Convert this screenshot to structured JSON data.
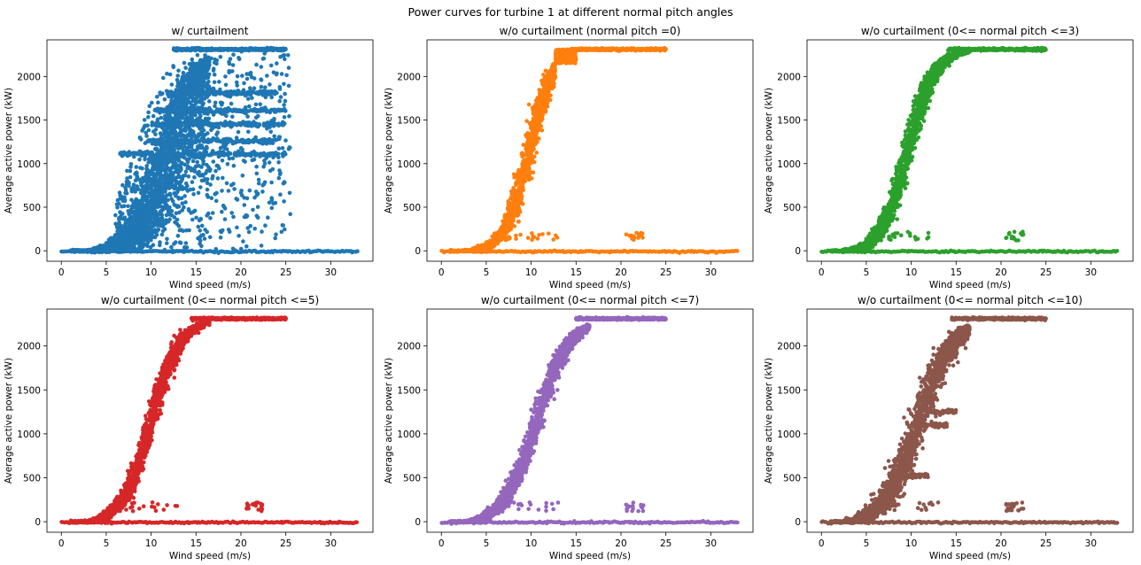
{
  "figure": {
    "title": "Power curves for turbine 1 at different normal pitch angles"
  },
  "chart_data": [
    {
      "type": "scatter",
      "title": "w/ curtailment",
      "xlabel": "Wind speed (m/s)",
      "ylabel": "Average active power (kW)",
      "xlim": [
        -1.6,
        34.7
      ],
      "ylim": [
        -120,
        2420
      ],
      "xticks": [
        0,
        5,
        10,
        15,
        20,
        25,
        30
      ],
      "yticks": [
        0,
        500,
        1000,
        1500,
        2000
      ],
      "grid": false,
      "series": [
        {
          "color": "#1f77b4",
          "mode": "curtailed",
          "curve": {
            "x0": 10.5,
            "k": 0.55,
            "rated": 2310,
            "cutin": 3
          },
          "rated_x_range": [
            12.5,
            25
          ],
          "zero_line_x_range": [
            0,
            33
          ],
          "horizontal_bands": [
            {
              "y": 1110,
              "x_range": [
                6.5,
                25
              ]
            },
            {
              "y": 1610,
              "x_range": [
                10.5,
                25
              ]
            },
            {
              "y": 1260,
              "x_range": [
                9.5,
                24
              ]
            },
            {
              "y": 1810,
              "x_range": [
                11,
                24
              ]
            },
            {
              "y": 1450,
              "x_range": [
                10,
                25
              ]
            }
          ]
        }
      ]
    },
    {
      "type": "scatter",
      "title": "w/o curtailment (normal pitch =0)",
      "xlabel": "Wind speed (m/s)",
      "ylabel": "Average active power (kW)",
      "xlim": [
        -1.6,
        34.7
      ],
      "ylim": [
        -120,
        2420
      ],
      "xticks": [
        0,
        5,
        10,
        15,
        20,
        25,
        30
      ],
      "yticks": [
        0,
        500,
        1000,
        1500,
        2000
      ],
      "grid": false,
      "series": [
        {
          "color": "#ff7f0e",
          "mode": "tight",
          "curve": {
            "x0": 9.8,
            "k": 0.75,
            "rated": 2310,
            "cutin": 3
          },
          "max_x_curve": 12.7,
          "jump": {
            "x_range": [
              12.7,
              15
            ],
            "y_range": [
              2150,
              2310
            ]
          },
          "rated_x_range": [
            14.5,
            25
          ],
          "zero_line_x_range": [
            0,
            33
          ],
          "low_cluster": {
            "x_range": [
              7,
              13
            ],
            "y_range": [
              120,
              210
            ]
          },
          "low_cluster2": {
            "x_range": [
              20.5,
              22.5
            ],
            "y_range": [
              120,
              210
            ]
          }
        }
      ]
    },
    {
      "type": "scatter",
      "title": "w/o curtailment (0<= normal pitch <=3)",
      "xlabel": "Wind speed (m/s)",
      "ylabel": "Average active power (kW)",
      "xlim": [
        -1.6,
        34.7
      ],
      "ylim": [
        -120,
        2420
      ],
      "xticks": [
        0,
        5,
        10,
        15,
        20,
        25,
        30
      ],
      "yticks": [
        0,
        500,
        1000,
        1500,
        2000
      ],
      "grid": false,
      "series": [
        {
          "color": "#2ca02c",
          "mode": "tight",
          "curve": {
            "x0": 9.6,
            "k": 0.68,
            "rated": 2310,
            "cutin": 3
          },
          "rated_x_range": [
            14,
            25
          ],
          "zero_line_x_range": [
            0,
            33
          ],
          "low_cluster": {
            "x_range": [
              7,
              12
            ],
            "y_range": [
              120,
              220
            ]
          },
          "low_cluster2": {
            "x_range": [
              20.5,
              22.5
            ],
            "y_range": [
              120,
              220
            ]
          }
        }
      ]
    },
    {
      "type": "scatter",
      "title": "w/o curtailment (0<= normal pitch <=5)",
      "xlabel": "Wind speed (m/s)",
      "ylabel": "Average active power (kW)",
      "xlim": [
        -1.6,
        34.7
      ],
      "ylim": [
        -120,
        2420
      ],
      "xticks": [
        0,
        5,
        10,
        15,
        20,
        25,
        30
      ],
      "yticks": [
        0,
        500,
        1000,
        1500,
        2000
      ],
      "grid": false,
      "series": [
        {
          "color": "#d62728",
          "mode": "tight",
          "curve": {
            "x0": 10.0,
            "k": 0.62,
            "rated": 2310,
            "cutin": 3
          },
          "rated_x_range": [
            14.5,
            25
          ],
          "zero_line_x_range": [
            0,
            33
          ],
          "low_cluster": {
            "x_range": [
              7,
              13
            ],
            "y_range": [
              120,
              220
            ]
          },
          "low_cluster2": {
            "x_range": [
              20.5,
              22.5
            ],
            "y_range": [
              120,
              220
            ]
          }
        }
      ]
    },
    {
      "type": "scatter",
      "title": "w/o curtailment (0<= normal pitch <=7)",
      "xlabel": "Wind speed (m/s)",
      "ylabel": "Average active power (kW)",
      "xlim": [
        -1.6,
        34.7
      ],
      "ylim": [
        -120,
        2420
      ],
      "xticks": [
        0,
        5,
        10,
        15,
        20,
        25,
        30
      ],
      "yticks": [
        0,
        500,
        1000,
        1500,
        2000
      ],
      "grid": false,
      "series": [
        {
          "color": "#9467bd",
          "mode": "tight",
          "curve": {
            "x0": 10.6,
            "k": 0.55,
            "rated": 2310,
            "cutin": 3
          },
          "rated_x_range": [
            15,
            25
          ],
          "zero_line_x_range": [
            0,
            33
          ],
          "low_cluster": {
            "x_range": [
              7,
              13
            ],
            "y_range": [
              120,
              220
            ]
          },
          "low_cluster2": {
            "x_range": [
              20.5,
              22.5
            ],
            "y_range": [
              120,
              220
            ]
          }
        }
      ]
    },
    {
      "type": "scatter",
      "title": "w/o curtailment (0<= normal pitch <=10)",
      "xlabel": "Wind speed (m/s)",
      "ylabel": "Average active power (kW)",
      "xlim": [
        -1.6,
        34.7
      ],
      "ylim": [
        -120,
        2420
      ],
      "xticks": [
        0,
        5,
        10,
        15,
        20,
        25,
        30
      ],
      "yticks": [
        0,
        500,
        1000,
        1500,
        2000
      ],
      "grid": false,
      "series": [
        {
          "color": "#8c564b",
          "mode": "wide",
          "curve": {
            "x0": 10.8,
            "k": 0.52,
            "rated": 2310,
            "cutin": 3
          },
          "rated_x_range": [
            14.5,
            25
          ],
          "zero_line_x_range": [
            0,
            33
          ],
          "horizontal_bands": [
            {
              "y": 520,
              "x_range": [
                9,
                12
              ]
            },
            {
              "y": 1100,
              "x_range": [
                11,
                14
              ]
            },
            {
              "y": 1250,
              "x_range": [
                12,
                15
              ]
            }
          ],
          "low_cluster": {
            "x_range": [
              7,
              13
            ],
            "y_range": [
              120,
              220
            ]
          },
          "low_cluster2": {
            "x_range": [
              20.5,
              22.5
            ],
            "y_range": [
              120,
              220
            ]
          }
        }
      ]
    }
  ]
}
